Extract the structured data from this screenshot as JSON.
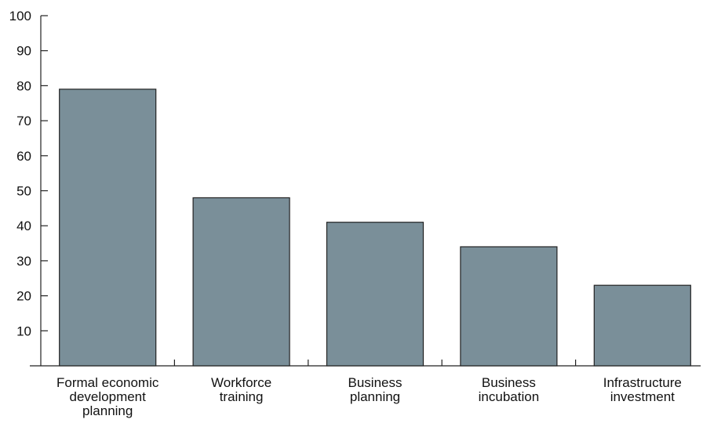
{
  "chart_data": {
    "type": "bar",
    "categories": [
      [
        "Formal economic",
        "development",
        "planning"
      ],
      [
        "Workforce",
        "training"
      ],
      [
        "Business",
        "planning"
      ],
      [
        "Business",
        "incubation"
      ],
      [
        "Infrastructure",
        "investment"
      ]
    ],
    "values": [
      79,
      48,
      41,
      34,
      23
    ],
    "ylim": [
      0,
      100
    ],
    "yticks": [
      10,
      20,
      30,
      40,
      50,
      60,
      70,
      80,
      90,
      100
    ],
    "grid": false,
    "bar_color": "#7a8f99",
    "bar_stroke": "#222222"
  }
}
